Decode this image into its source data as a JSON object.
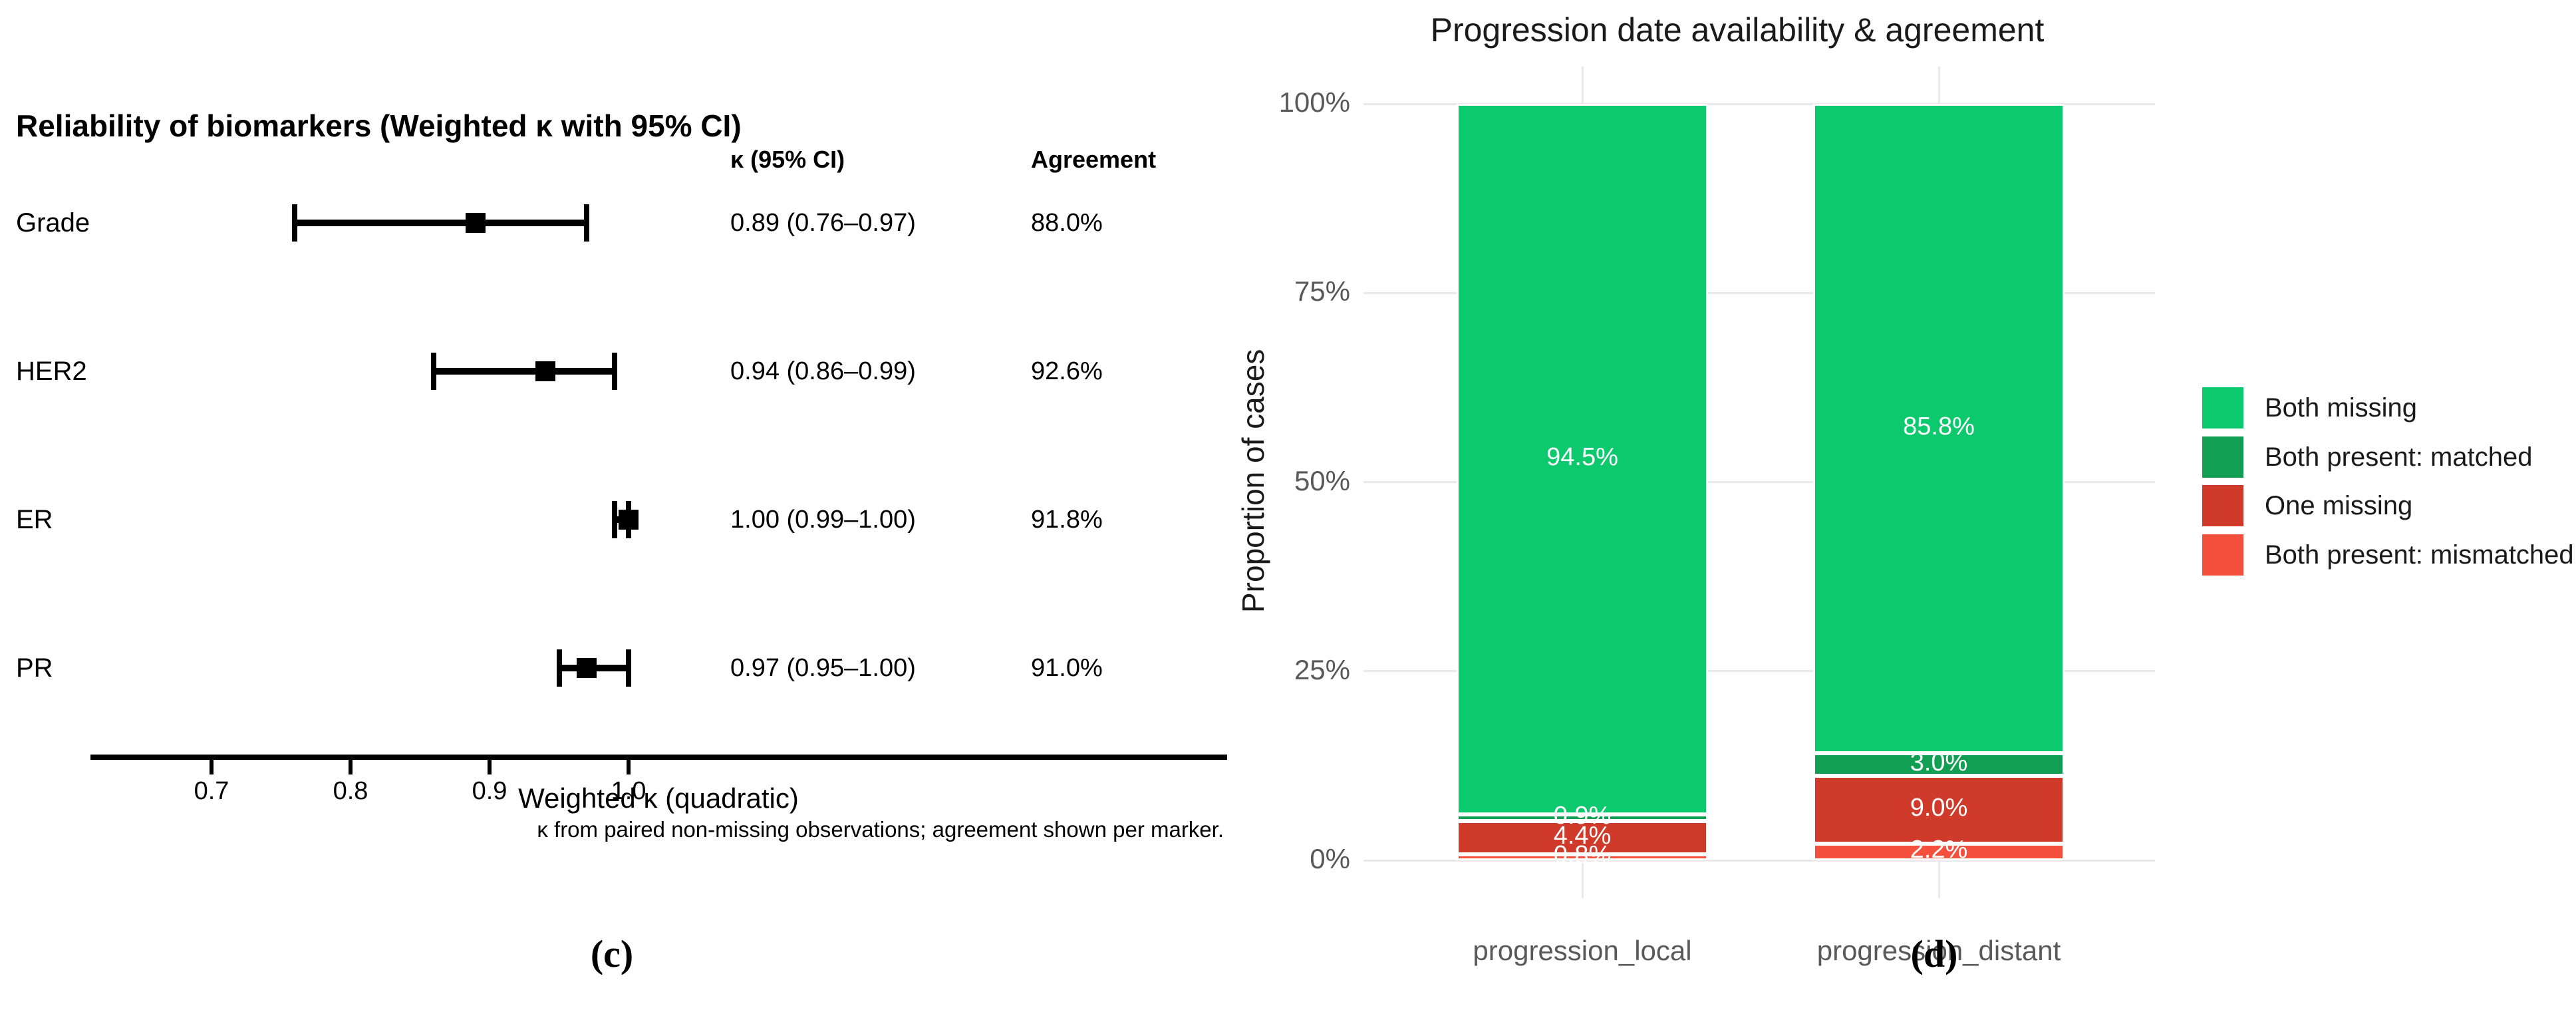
{
  "chart_data": [
    {
      "id": "c",
      "type": "scatter",
      "subtype": "forest-plot",
      "title": "Reliability of biomarkers (Weighted κ with 95% CI)",
      "panel_label": "(c)",
      "columns": {
        "kappa": "κ (95% CI)",
        "agreement": "Agreement"
      },
      "rows": [
        {
          "label": "Grade",
          "kappa": 0.89,
          "ci_low": 0.76,
          "ci_high": 0.97,
          "kappa_text": "0.89 (0.76–0.97)",
          "agreement": "88.0%"
        },
        {
          "label": "HER2",
          "kappa": 0.94,
          "ci_low": 0.86,
          "ci_high": 0.99,
          "kappa_text": "0.94 (0.86–0.99)",
          "agreement": "92.6%"
        },
        {
          "label": "ER",
          "kappa": 1.0,
          "ci_low": 0.99,
          "ci_high": 1.0,
          "kappa_text": "1.00 (0.99–1.00)",
          "agreement": "91.8%"
        },
        {
          "label": "PR",
          "kappa": 0.97,
          "ci_low": 0.95,
          "ci_high": 1.0,
          "kappa_text": "0.97 (0.95–1.00)",
          "agreement": "91.0%"
        }
      ],
      "xlabel": "Weighted κ (quadratic)",
      "x_ticks": [
        "0.7",
        "0.8",
        "0.9",
        "1.0"
      ],
      "x_tick_values": [
        0.7,
        0.8,
        0.9,
        1.0
      ],
      "footnote": "κ from paired non-missing observations; agreement shown per marker.",
      "marker_color": "#000000",
      "grid": false
    },
    {
      "id": "d",
      "type": "bar",
      "subtype": "stacked-percent",
      "title": "Progression date availability & agreement",
      "panel_label": "(d)",
      "ylabel": "Proportion of cases",
      "ylim": [
        0,
        100
      ],
      "y_ticks": [
        "0%",
        "25%",
        "50%",
        "75%",
        "100%"
      ],
      "y_tick_values": [
        0,
        25,
        50,
        75,
        100
      ],
      "categories": [
        "progression_local",
        "progression_distant"
      ],
      "legend_position": "right",
      "grid": true,
      "stack_order_top_to_bottom": [
        "Both missing",
        "Both present: matched",
        "One missing",
        "Both present: mismatched"
      ],
      "series": [
        {
          "name": "Both missing",
          "color": "#0cc96d",
          "values": [
            94.5,
            85.8
          ],
          "labels": [
            "94.5%",
            "85.8%"
          ]
        },
        {
          "name": "Both present: matched",
          "color": "#129e53",
          "values": [
            0.9,
            3.0
          ],
          "labels": [
            "0.9%",
            "3.0%"
          ]
        },
        {
          "name": "One missing",
          "color": "#cf3a2a",
          "values": [
            4.4,
            9.0
          ],
          "labels": [
            "4.4%",
            "9.0%"
          ]
        },
        {
          "name": "Both present: mismatched",
          "color": "#f5503e",
          "values": [
            0.8,
            2.2
          ],
          "labels": [
            "0.8%",
            "2.2%"
          ]
        }
      ]
    }
  ],
  "colors": {
    "gridline": "#e9e9e9",
    "axis_text_gray": "#595959",
    "marker_black": "#000000",
    "bar_separator_white": "#ffffff"
  }
}
